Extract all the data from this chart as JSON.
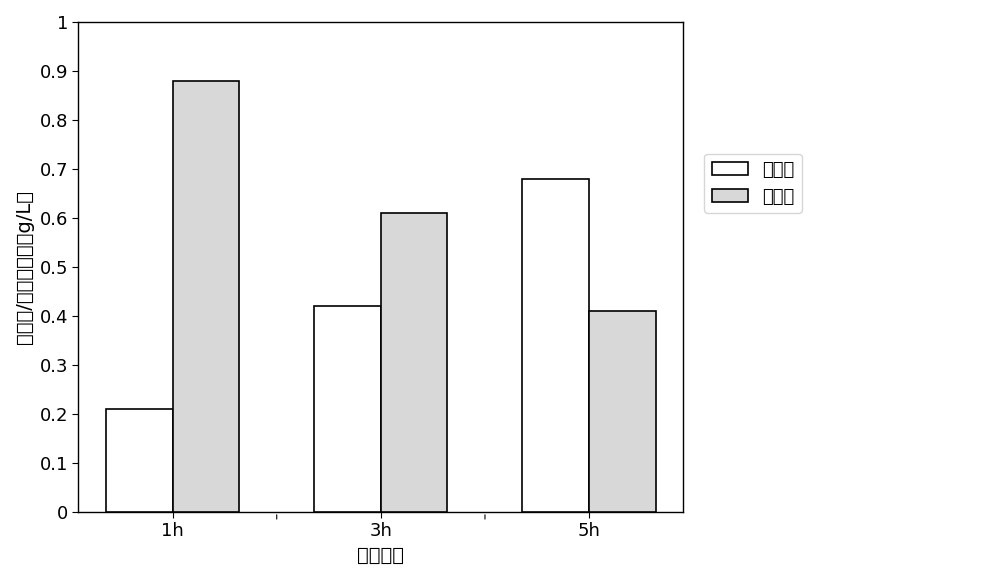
{
  "categories": [
    "1h",
    "3h",
    "5h"
  ],
  "series1_name": "香橙素",
  "series2_name": "柚皮素",
  "series1_values": [
    0.21,
    0.42,
    0.68
  ],
  "series2_values": [
    0.88,
    0.61,
    0.41
  ],
  "series1_color": "#ffffff",
  "series2_color": "#d8d8d8",
  "series1_edgecolor": "#000000",
  "series2_edgecolor": "#000000",
  "ylabel": "香橙素/柚皮素含量（g/L）",
  "xlabel": "诱导时间",
  "ylim": [
    0,
    1.0
  ],
  "yticks": [
    0,
    0.1,
    0.2,
    0.3,
    0.4,
    0.5,
    0.6,
    0.7,
    0.8,
    0.9,
    1
  ],
  "ytick_labels": [
    "0",
    "0.1",
    "0.2",
    "0.3",
    "0.4",
    "0.5",
    "0.6",
    "0.7",
    "0.8",
    "0.9",
    "1"
  ],
  "bar_width": 0.32,
  "background_color": "#ffffff",
  "label_fontsize": 14,
  "tick_fontsize": 13,
  "legend_fontsize": 13
}
